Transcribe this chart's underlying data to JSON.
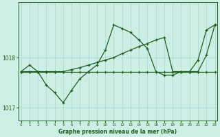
{
  "x": [
    0,
    1,
    2,
    3,
    4,
    5,
    6,
    7,
    8,
    9,
    10,
    11,
    12,
    13,
    14,
    15,
    16,
    17,
    18,
    19,
    20,
    21,
    22,
    23
  ],
  "line_flat": [
    1017.72,
    1017.72,
    1017.72,
    1017.72,
    1017.72,
    1017.72,
    1017.72,
    1017.72,
    1017.72,
    1017.72,
    1017.72,
    1017.72,
    1017.72,
    1017.72,
    1017.72,
    1017.72,
    1017.72,
    1017.72,
    1017.72,
    1017.72,
    1017.72,
    1017.72,
    1017.72,
    1017.72
  ],
  "line_wave": [
    1017.72,
    1017.85,
    1017.72,
    1017.45,
    1017.3,
    1017.1,
    1017.35,
    1017.58,
    1017.72,
    1017.85,
    1018.15,
    1018.65,
    1018.58,
    1018.5,
    1018.35,
    1018.18,
    1017.72,
    1017.65,
    1017.65,
    1017.72,
    1017.72,
    1017.95,
    1018.55,
    1018.65
  ],
  "line_rise": [
    1017.72,
    1017.72,
    1017.72,
    1017.72,
    1017.72,
    1017.72,
    1017.76,
    1017.8,
    1017.85,
    1017.9,
    1017.95,
    1018.0,
    1018.08,
    1018.15,
    1018.22,
    1018.28,
    1018.35,
    1018.4,
    1017.72,
    1017.72,
    1017.72,
    1017.72,
    1018.05,
    1018.65
  ],
  "background_color": "#cceee4",
  "line_color": "#1e5c1e",
  "grid_color": "#a8d8cc",
  "xlabel_label": "Graphe pression niveau de la mer (hPa)",
  "ylim": [
    1016.75,
    1019.1
  ],
  "xlim": [
    -0.3,
    23.3
  ]
}
